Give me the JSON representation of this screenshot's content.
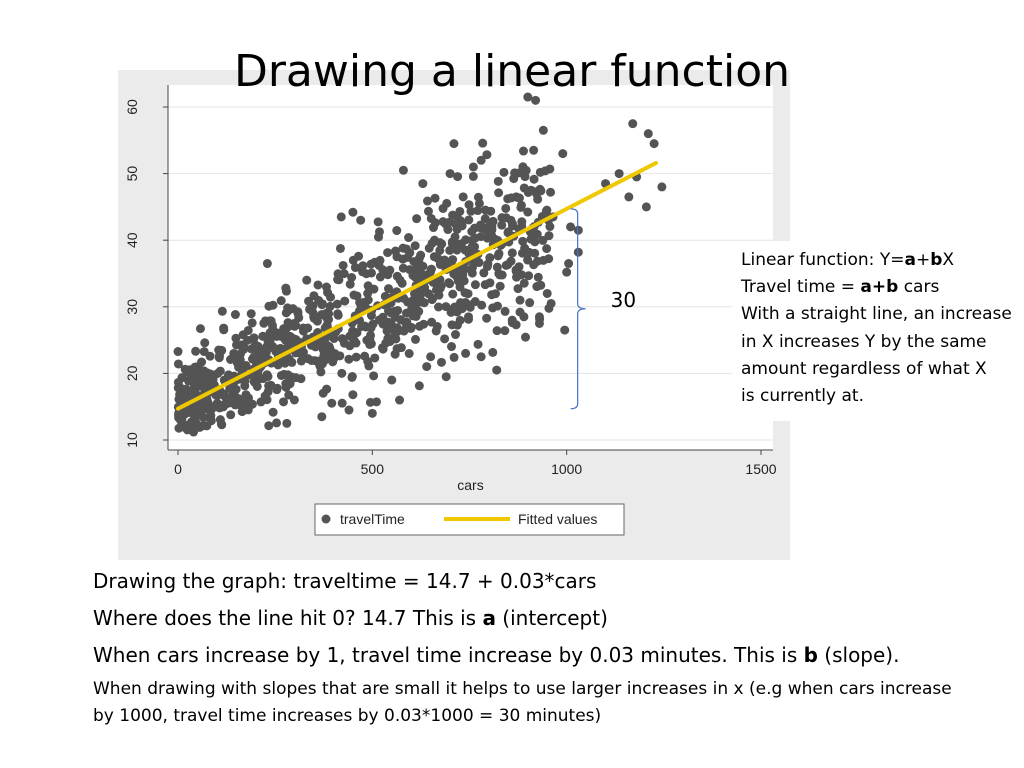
{
  "slide": {
    "title": "Drawing a linear function"
  },
  "chart_data": {
    "type": "scatter",
    "xlabel": "cars",
    "ylabel": "",
    "xlim": [
      0,
      1500
    ],
    "ylim": [
      10,
      60
    ],
    "x_ticks": [
      0,
      500,
      1000,
      1500
    ],
    "y_ticks": [
      10,
      20,
      30,
      40,
      50,
      60
    ],
    "grid": true,
    "legend_position": "bottom",
    "series": [
      {
        "name": "travelTime",
        "kind": "scatter",
        "color": "#545454",
        "approx_point_count": 900,
        "trend": {
          "intercept": 14.7,
          "slope": 0.03,
          "x_range": [
            0,
            1230
          ],
          "spread_sd": 4.2
        },
        "outliers": [
          [
            900,
            61.5
          ],
          [
            920,
            61
          ],
          [
            710,
            54.5
          ],
          [
            940,
            56.5
          ],
          [
            915,
            53.5
          ],
          [
            990,
            53
          ],
          [
            1170,
            57.5
          ],
          [
            1210,
            56
          ],
          [
            1225,
            54.5
          ],
          [
            1180,
            49.5
          ],
          [
            1135,
            50
          ],
          [
            1100,
            48.5
          ],
          [
            1160,
            46.5
          ],
          [
            1245,
            48
          ],
          [
            1205,
            45
          ],
          [
            1010,
            42
          ],
          [
            1030,
            41.5
          ],
          [
            965,
            43.5
          ],
          [
            1030,
            38.2
          ],
          [
            1005,
            36.5
          ],
          [
            1000,
            35.2
          ],
          [
            880,
            31
          ],
          [
            950,
            32
          ],
          [
            960,
            30.5
          ],
          [
            870,
            27.3
          ],
          [
            880,
            29.2
          ],
          [
            890,
            28.5
          ],
          [
            930,
            28.5
          ],
          [
            995,
            26.5
          ],
          [
            930,
            27.5
          ],
          [
            740,
            23
          ],
          [
            780,
            22.5
          ],
          [
            820,
            20.5
          ],
          [
            860,
            28
          ],
          [
            690,
            19.5
          ],
          [
            545,
            35.5
          ],
          [
            450,
            16.8
          ],
          [
            570,
            16
          ],
          [
            550,
            19
          ],
          [
            650,
            22.5
          ],
          [
            440,
            14.5
          ],
          [
            500,
            14
          ],
          [
            40,
            11.2
          ],
          [
            280,
            12.5
          ],
          [
            370,
            13.5
          ],
          [
            230,
            36.5
          ],
          [
            450,
            44.2
          ],
          [
            470,
            43
          ],
          [
            420,
            43.5
          ],
          [
            630,
            48.5
          ],
          [
            700,
            50
          ],
          [
            760,
            51
          ],
          [
            780,
            52
          ],
          [
            580,
            50.5
          ]
        ]
      },
      {
        "name": "Fitted values",
        "kind": "line",
        "color": "#f0c800",
        "x": [
          0,
          1230
        ],
        "y": [
          14.7,
          51.6
        ]
      }
    ],
    "annotations": [
      {
        "type": "brace",
        "x": 1000,
        "y_from": 14.7,
        "y_to": 44.7,
        "label": "30"
      }
    ]
  },
  "callout": {
    "line1_prefix": "Linear function: Y=",
    "line1_a": "a",
    "line1_plus": "+",
    "line1_b": "b",
    "line1_suffix": "X",
    "line2_prefix": "Travel time = ",
    "line2_ab": "a+b",
    "line2_suffix": " cars",
    "line3": "With a straight line, an increase",
    "line4": "in X increases  Y  by the same",
    "line5": "amount  regardless of what X",
    "line6": "is currently at."
  },
  "notes": {
    "line1": "Drawing the graph:  traveltime = 14.7 + 0.03*cars",
    "line2_prefix": "Where does the line hit 0? 14.7 This is ",
    "line2_bold": "a",
    "line2_suffix": " (intercept)",
    "line3_prefix": "When cars increase by 1, travel time increase by 0.03 minutes. This is ",
    "line3_bold": "b",
    "line3_suffix": " (slope).",
    "line4": "When drawing with slopes that are small it helps to use larger increases in x (e.g when cars increase",
    "line5": "by 1000, travel time increases by 0.03*1000 = 30 minutes)"
  }
}
